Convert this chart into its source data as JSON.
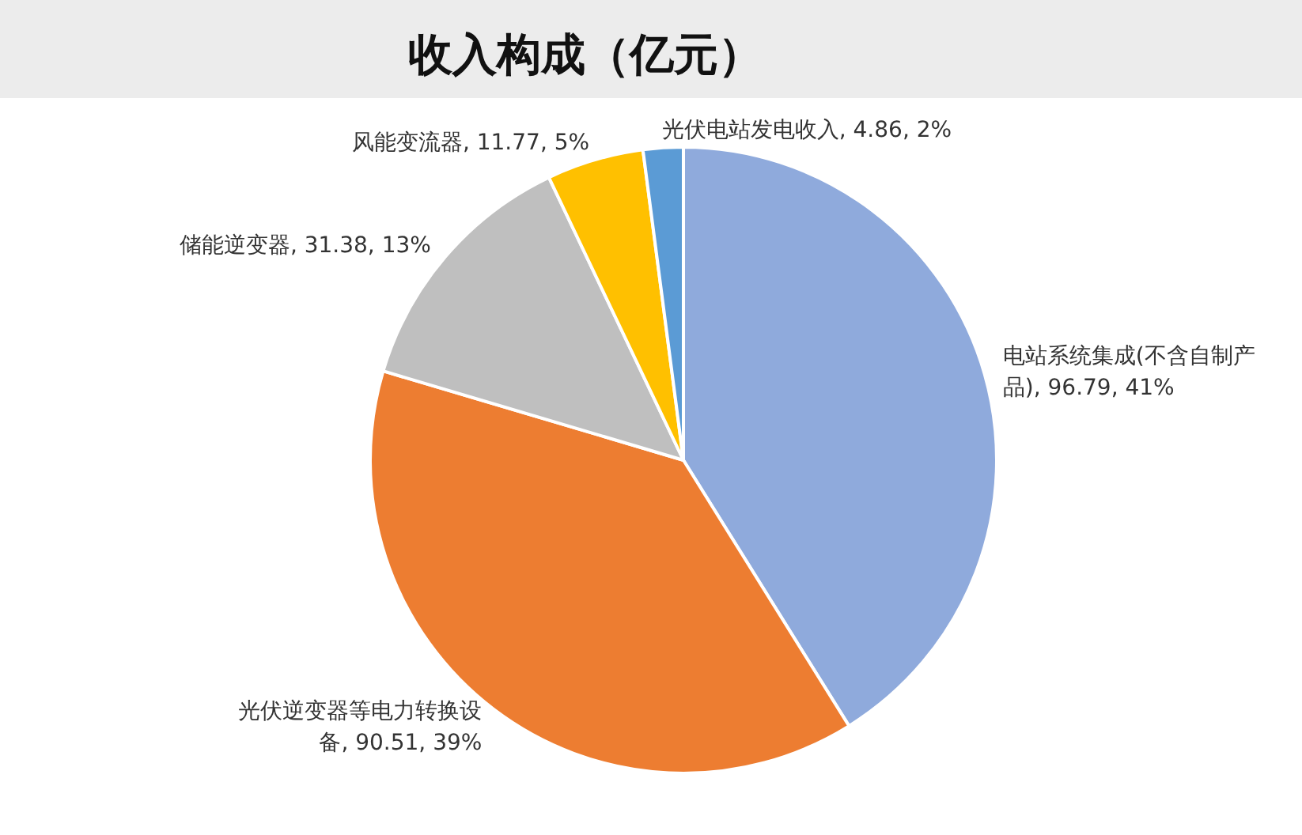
{
  "chart_data": {
    "type": "pie",
    "title": "收入构成（亿元）",
    "categories": [
      "电站系统集成(不含自制产品)",
      "光伏逆变器等电力转换设备",
      "储能逆变器",
      "风能变流器",
      "光伏电站发电收入"
    ],
    "values": [
      96.79,
      90.51,
      31.38,
      11.77,
      4.86
    ],
    "colors": [
      "#8faadc",
      "#ed7d31",
      "#bfbfbf",
      "#ffc000",
      "#5b9bd5"
    ],
    "value_labels": [
      ", 96.79, 41%",
      ", 90.51, 39%",
      ", 31.38, 13%",
      ", 11.77, 5%",
      ", 4.86, 2%"
    ]
  }
}
